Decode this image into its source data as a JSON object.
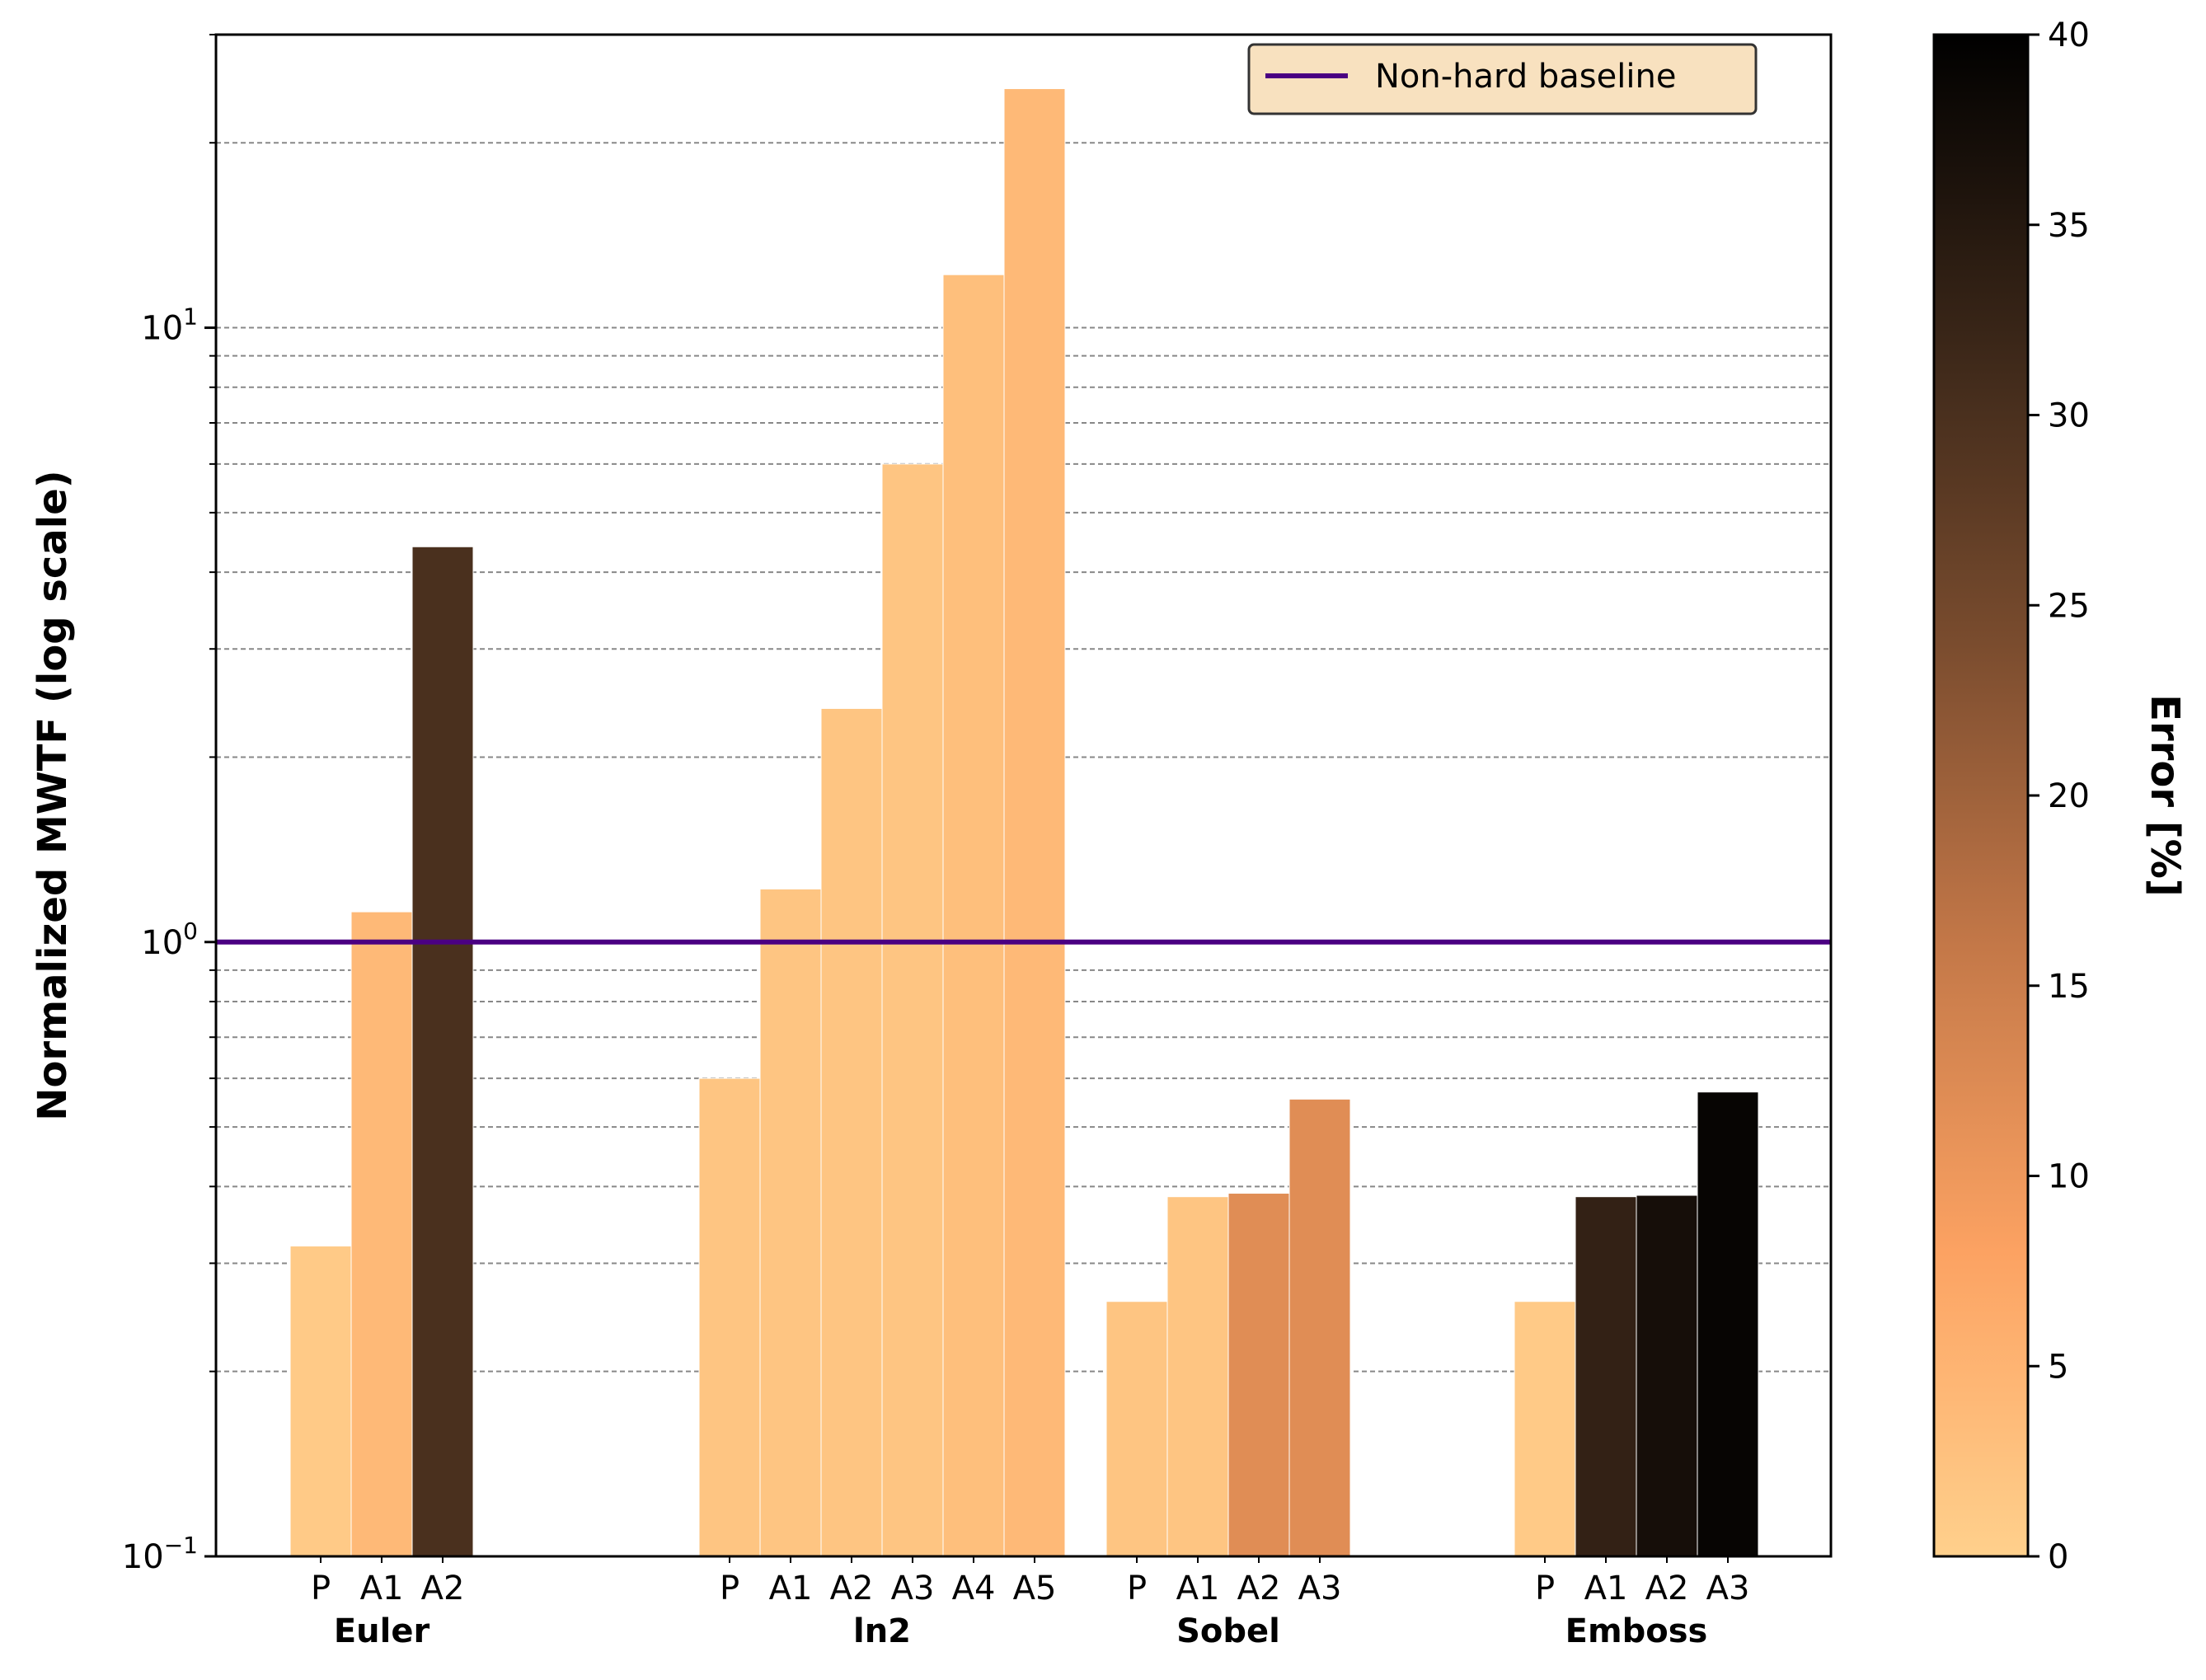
{
  "chart_data": {
    "type": "bar",
    "scale": "log",
    "ylabel": "Normalized MWTF (log scale)",
    "ylim": [
      0.1,
      30
    ],
    "y_ticks": [
      {
        "value": 0.1,
        "base": "10",
        "exp": "−1"
      },
      {
        "value": 1,
        "base": "10",
        "exp": "0"
      },
      {
        "value": 10,
        "base": "10",
        "exp": "1"
      }
    ],
    "baseline": {
      "label": "Non-hard baseline",
      "value": 1.0,
      "color": "#4b0082"
    },
    "legend": {
      "placement": "top-right",
      "background": "#f8e1bf"
    },
    "groups": [
      {
        "name": "Euler",
        "bars": [
          {
            "label": "P",
            "value": 0.32,
            "error": 1
          },
          {
            "label": "A1",
            "value": 1.12,
            "error": 4
          },
          {
            "label": "A2",
            "value": 4.4,
            "error": 30
          }
        ]
      },
      {
        "name": "ln2",
        "bars": [
          {
            "label": "P",
            "value": 0.6,
            "error": 2
          },
          {
            "label": "A1",
            "value": 1.22,
            "error": 2
          },
          {
            "label": "A2",
            "value": 2.4,
            "error": 2
          },
          {
            "label": "A3",
            "value": 6.0,
            "error": 2
          },
          {
            "label": "A4",
            "value": 12.2,
            "error": 3
          },
          {
            "label": "A5",
            "value": 24.5,
            "error": 4
          }
        ]
      },
      {
        "name": "Sobel",
        "bars": [
          {
            "label": "P",
            "value": 0.26,
            "error": 2
          },
          {
            "label": "A1",
            "value": 0.385,
            "error": 2
          },
          {
            "label": "A2",
            "value": 0.39,
            "error": 12
          },
          {
            "label": "A3",
            "value": 0.555,
            "error": 12
          }
        ]
      },
      {
        "name": "Emboss",
        "bars": [
          {
            "label": "P",
            "value": 0.26,
            "error": 1
          },
          {
            "label": "A1",
            "value": 0.385,
            "error": 33
          },
          {
            "label": "A2",
            "value": 0.387,
            "error": 37
          },
          {
            "label": "A3",
            "value": 0.57,
            "error": 39
          }
        ]
      }
    ],
    "colorbar": {
      "label": "Error [%]",
      "min": 0,
      "max": 40,
      "ticks": [
        0,
        5,
        10,
        15,
        20,
        25,
        30,
        35,
        40
      ],
      "colormap_stops": [
        {
          "v": 0,
          "color": "#ffd08c"
        },
        {
          "v": 8,
          "color": "#fca262"
        },
        {
          "v": 16,
          "color": "#c47848"
        },
        {
          "v": 24,
          "color": "#7a4c2e"
        },
        {
          "v": 32,
          "color": "#3a2618"
        },
        {
          "v": 40,
          "color": "#000000"
        }
      ]
    }
  }
}
